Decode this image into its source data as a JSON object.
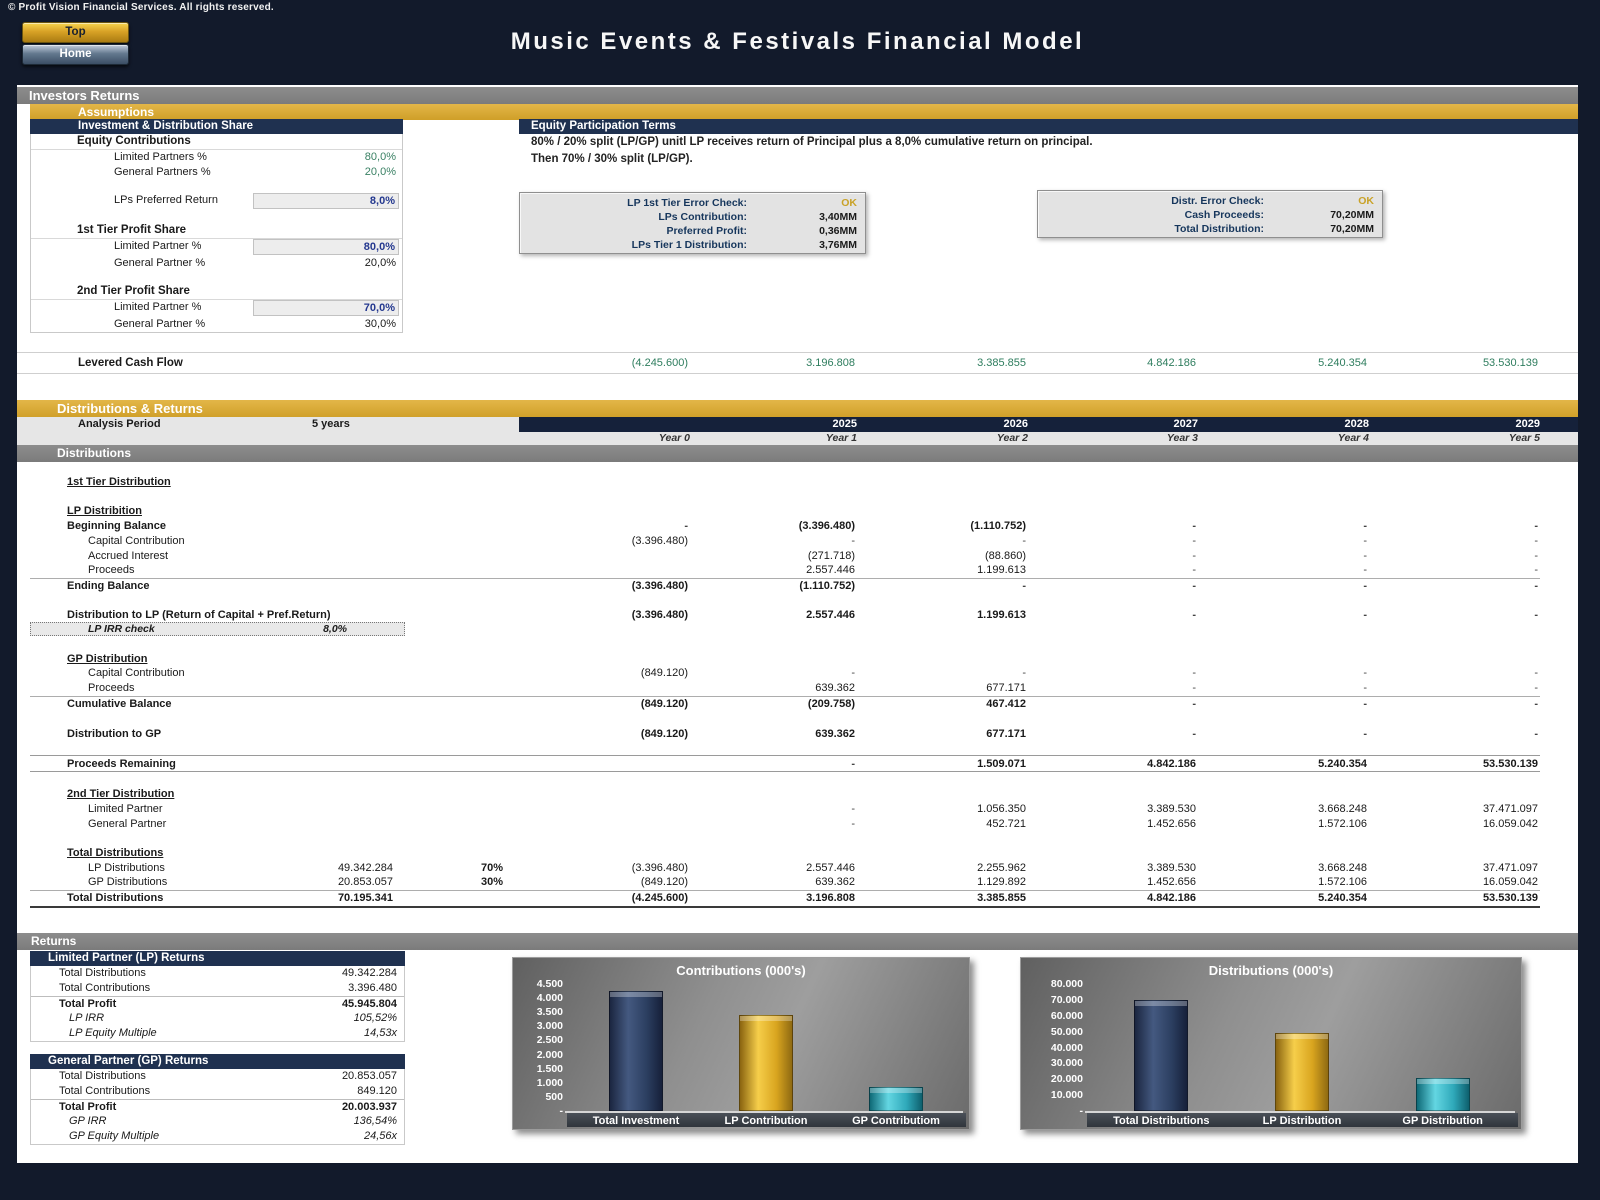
{
  "header": {
    "copyright": "© Profit Vision Financial Services. All rights reserved.",
    "buttons": {
      "top": "Top",
      "home": "Home"
    },
    "title": "Music Events & Festivals Financial Model"
  },
  "bars": {
    "investors_returns": "Investors Returns",
    "assumptions": "Assumptions",
    "distributions_returns": "Distributions & Returns",
    "distributions": "Distributions",
    "returns": "Returns"
  },
  "investment_share": {
    "title": "Investment & Distribution Share",
    "rows": [
      {
        "type": "group",
        "label": "Equity Contributions"
      },
      {
        "type": "value",
        "label": "Limited Partners %",
        "value": "80,0%",
        "color": "green"
      },
      {
        "type": "value",
        "label": "General Partners %",
        "value": "20,0%",
        "color": "green"
      },
      {
        "type": "spacer"
      },
      {
        "type": "input",
        "label": "LPs Preferred Return",
        "value": "8,0%"
      },
      {
        "type": "spacer"
      },
      {
        "type": "group",
        "label": "1st Tier Profit Share"
      },
      {
        "type": "input",
        "label": "Limited Partner %",
        "value": "80,0%"
      },
      {
        "type": "value",
        "label": "General Partner %",
        "value": "20,0%",
        "color": "black"
      },
      {
        "type": "spacer"
      },
      {
        "type": "group",
        "label": "2nd Tier Profit Share"
      },
      {
        "type": "input",
        "label": "Limited Partner %",
        "value": "70,0%"
      },
      {
        "type": "value",
        "label": "General Partner %",
        "value": "30,0%",
        "color": "black"
      }
    ]
  },
  "equity_terms": {
    "title": "Equity Participation Terms",
    "line1": "80% / 20% split (LP/GP) unitl LP receives return of Principal plus a 8,0% cumulative return on principal.",
    "line2": "Then 70% / 30% split (LP/GP).",
    "check_boxes": [
      {
        "rows": [
          {
            "label": "LP 1st Tier Error Check:",
            "value": "OK",
            "ok": true
          },
          {
            "label": "LPs Contribution:",
            "value": "3,40MM"
          },
          {
            "label": "Preferred Profit:",
            "value": "0,36MM"
          },
          {
            "label": "LPs Tier 1 Distribution:",
            "value": "3,76MM"
          }
        ]
      },
      {
        "rows": [
          {
            "label": "Distr. Error Check:",
            "value": "OK",
            "ok": true
          },
          {
            "label": "Cash Proceeds:",
            "value": "70,20MM"
          },
          {
            "label": "Total Distribution:",
            "value": "70,20MM"
          }
        ]
      }
    ]
  },
  "levered_cash_flow": {
    "label": "Levered Cash Flow",
    "values": [
      "(4.245.600)",
      "3.196.808",
      "3.385.855",
      "4.842.186",
      "5.240.354",
      "53.530.139"
    ]
  },
  "period": {
    "label": "Analysis Period",
    "value": "5 years",
    "years": [
      "2025",
      "2026",
      "2027",
      "2028",
      "2029"
    ],
    "year_labels": [
      "Year 0",
      "Year 1",
      "Year 2",
      "Year 3",
      "Year 4",
      "Year 5"
    ]
  },
  "distribution_table": {
    "rows": [
      {
        "sp": 13
      },
      {
        "label": "1st Tier Distribution",
        "style": "heading"
      },
      {
        "sp": 14
      },
      {
        "label": "LP Distribition",
        "style": "heading"
      },
      {
        "label": "Beginning Balance",
        "style": "bold",
        "y": [
          "-",
          "(3.396.480)",
          "(1.110.752)",
          "-",
          "-",
          "-"
        ]
      },
      {
        "label": "Capital Contribution",
        "style": "indent",
        "y": [
          "(3.396.480)",
          "-",
          "-",
          "-",
          "-",
          "-"
        ]
      },
      {
        "label": "Accrued Interest",
        "style": "indent",
        "y": [
          "",
          "(271.718)",
          "(88.860)",
          "-",
          "-",
          "-"
        ]
      },
      {
        "label": "Proceeds",
        "style": "indent",
        "border": "bb",
        "y": [
          "",
          "2.557.446",
          "1.199.613",
          "-",
          "-",
          "-"
        ]
      },
      {
        "label": "Ending Balance",
        "style": "bold",
        "y": [
          "(3.396.480)",
          "(1.110.752)",
          "-",
          "-",
          "-",
          "-"
        ]
      },
      {
        "sp": 14
      },
      {
        "label": "Distribution to LP (Return of Capital + Pref.Return)",
        "style": "bold",
        "y": [
          "(3.396.480)",
          "2.557.446",
          "1.199.613",
          "-",
          "-",
          "-"
        ]
      },
      {
        "label": "LP IRR check",
        "style": "irr",
        "value": "8,0%"
      },
      {
        "sp": 14
      },
      {
        "label": "GP Distribution",
        "style": "heading"
      },
      {
        "label": "Capital Contribution",
        "style": "indent",
        "y": [
          "(849.120)",
          "-",
          "-",
          "-",
          "-",
          "-"
        ]
      },
      {
        "label": "Proceeds",
        "style": "indent",
        "border": "bb",
        "y": [
          "",
          "639.362",
          "677.171",
          "-",
          "-",
          "-"
        ]
      },
      {
        "label": "Cumulative Balance",
        "style": "bold",
        "y": [
          "(849.120)",
          "(209.758)",
          "467.412",
          "-",
          "-",
          "-"
        ]
      },
      {
        "sp": 15
      },
      {
        "label": "Distribution to GP",
        "style": "bold",
        "y": [
          "(849.120)",
          "639.362",
          "677.171",
          "-",
          "-",
          "-"
        ]
      },
      {
        "sp": 14
      },
      {
        "label": "Proceeds Remaining",
        "style": "bold",
        "border": "tb",
        "y": [
          "",
          "-",
          "1.509.071",
          "4.842.186",
          "5.240.354",
          "53.530.139"
        ]
      },
      {
        "sp": 15
      },
      {
        "label": "2nd Tier Distribution",
        "style": "heading"
      },
      {
        "label": "Limited Partner",
        "style": "indent",
        "y": [
          "",
          "-",
          "1.056.350",
          "3.389.530",
          "3.668.248",
          "37.471.097"
        ]
      },
      {
        "label": "General Partner",
        "style": "indent",
        "y": [
          "",
          "-",
          "452.721",
          "1.452.656",
          "1.572.106",
          "16.059.042"
        ]
      },
      {
        "sp": 14
      },
      {
        "label": "Total Distributions",
        "style": "heading"
      },
      {
        "label": "LP Distributions",
        "style": "indent",
        "total": "49.342.284",
        "pct": "70%",
        "y": [
          "(3.396.480)",
          "2.557.446",
          "2.255.962",
          "3.389.530",
          "3.668.248",
          "37.471.097"
        ]
      },
      {
        "label": "GP Distributions",
        "style": "indent",
        "total": "20.853.057",
        "pct": "30%",
        "border": "bb",
        "y": [
          "(849.120)",
          "639.362",
          "1.129.892",
          "1.452.656",
          "1.572.106",
          "16.059.042"
        ]
      },
      {
        "label": "Total Distributions",
        "style": "bold",
        "total": "70.195.341",
        "border": "bb2",
        "y": [
          "(4.245.600)",
          "3.196.808",
          "3.385.855",
          "4.842.186",
          "5.240.354",
          "53.530.139"
        ]
      }
    ]
  },
  "returns_tables": [
    {
      "title": "Limited Partner (LP) Returns",
      "rows": [
        {
          "label": "Total Distributions",
          "value": "49.342.284"
        },
        {
          "label": "Total Contributions",
          "value": "3.396.480",
          "border": true
        },
        {
          "label": "Total Profit",
          "value": "45.945.804",
          "bold": true
        },
        {
          "label": "LP IRR",
          "value": "105,52%",
          "italic": true
        },
        {
          "label": "LP Equity Multiple",
          "value": "14,53x",
          "italic": true
        }
      ]
    },
    {
      "title": "General Partner (GP) Returns",
      "rows": [
        {
          "label": "Total Distributions",
          "value": "20.853.057"
        },
        {
          "label": "Total Contributions",
          "value": "849.120",
          "border": true
        },
        {
          "label": "Total Profit",
          "value": "20.003.937",
          "bold": true
        },
        {
          "label": "GP IRR",
          "value": "136,54%",
          "italic": true
        },
        {
          "label": "GP Equity Multiple",
          "value": "24,56x",
          "italic": true
        }
      ]
    }
  ],
  "chart_data": [
    {
      "type": "bar",
      "title": "Contributions (000's)",
      "categories": [
        "Total Investment",
        "LP Contribution",
        "GP Contributiom"
      ],
      "values": [
        4245.6,
        3396.5,
        849.1
      ],
      "ylim": [
        0,
        4500
      ],
      "tick_values": [
        4500,
        4000,
        3500,
        3000,
        2500,
        2000,
        1500,
        1000,
        500,
        0
      ],
      "tick_labels": [
        "4.500",
        "4.000",
        "3.500",
        "3.000",
        "2.500",
        "2.000",
        "1.500",
        "1.000",
        "500",
        "-"
      ],
      "bar_colors": [
        "#2e4569",
        "#e7b32b",
        "#3fb9c9"
      ],
      "legend": "none",
      "grid": false
    },
    {
      "type": "bar",
      "title": "Distributions (000's)",
      "categories": [
        "Total Distributions",
        "LP Distribution",
        "GP Distribution"
      ],
      "values": [
        70195.3,
        49342.3,
        20853.1
      ],
      "ylim": [
        0,
        80000
      ],
      "tick_values": [
        80000,
        70000,
        60000,
        50000,
        40000,
        30000,
        20000,
        10000,
        0
      ],
      "tick_labels": [
        "80.000",
        "70.000",
        "60.000",
        "50.000",
        "40.000",
        "30.000",
        "20.000",
        "10.000",
        "-"
      ],
      "bar_colors": [
        "#2e4569",
        "#e7b32b",
        "#3fb9c9"
      ],
      "legend": "none",
      "grid": false
    }
  ]
}
